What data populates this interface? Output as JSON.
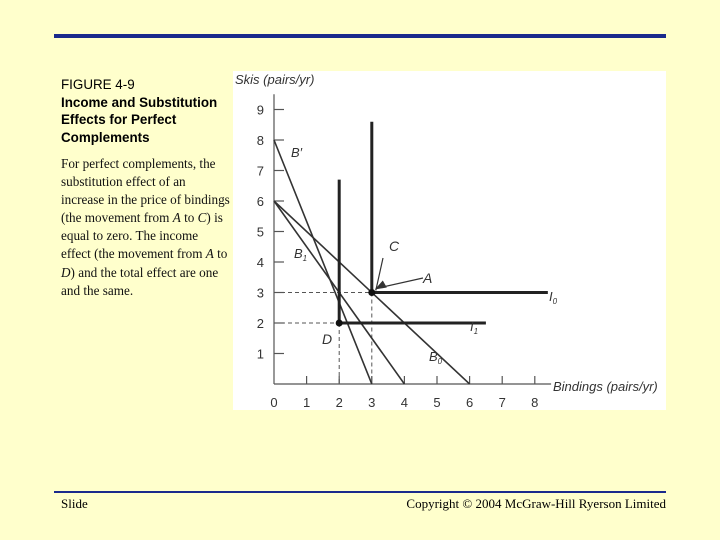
{
  "slide": {
    "figure_number": "FIGURE 4-9",
    "figure_title": "Income and Substitution Effects for Perfect Complements",
    "caption_parts": [
      {
        "text": "For perfect complements, the substitution effect of an increase in the price of bindings (the movement from ",
        "italic": false
      },
      {
        "text": "A",
        "italic": true
      },
      {
        "text": " to ",
        "italic": false
      },
      {
        "text": "C",
        "italic": true
      },
      {
        "text": ") is equal to zero. The income effect (the movement from ",
        "italic": false
      },
      {
        "text": "A",
        "italic": true
      },
      {
        "text": " to ",
        "italic": false
      },
      {
        "text": "D",
        "italic": true
      },
      {
        "text": ") and the total effect are one and the same.",
        "italic": false
      }
    ],
    "footer_left": "Slide",
    "footer_right": "Copyright © 2004 McGraw-Hill Ryerson Limited"
  },
  "diagram": {
    "y_axis_label": "Skis (pairs/yr)",
    "x_axis_label": "Bindings (pairs/yr)",
    "x_ticks": [
      "0",
      "1",
      "2",
      "3",
      "4",
      "5",
      "6",
      "7",
      "8"
    ],
    "y_ticks": [
      "1",
      "2",
      "3",
      "4",
      "5",
      "6",
      "7",
      "8",
      "9"
    ],
    "budget_lines": [
      {
        "label": "B′",
        "from": [
          0,
          8
        ],
        "to": [
          3,
          0
        ]
      },
      {
        "label": "B1",
        "from": [
          0,
          6
        ],
        "to": [
          4,
          0
        ]
      },
      {
        "label": "B0",
        "from": [
          0,
          6
        ],
        "to": [
          6,
          0
        ]
      }
    ],
    "indifference_curves": [
      {
        "label": "I0",
        "corner": [
          3,
          3
        ],
        "top_y": 8.6,
        "right_x": 8.4
      },
      {
        "label": "I1",
        "corner": [
          2,
          2
        ],
        "top_y": 6.7,
        "right_x": 6.5
      }
    ],
    "points": [
      {
        "label": "A",
        "x": 3,
        "y": 3
      },
      {
        "label": "C",
        "x": 3,
        "y": 3
      },
      {
        "label": "D",
        "x": 2,
        "y": 2
      }
    ]
  }
}
